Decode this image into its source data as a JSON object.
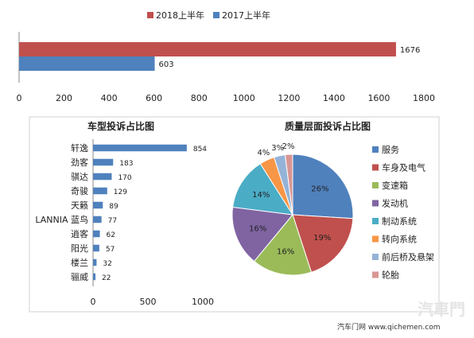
{
  "chart_data": [
    {
      "type": "bar",
      "orientation": "horizontal",
      "series": [
        {
          "name": "2018上半年",
          "values": [
            1676
          ],
          "color": "#c0504d"
        },
        {
          "name": "2017上半年",
          "values": [
            603
          ],
          "color": "#4f81bd"
        }
      ],
      "x_ticks": [
        "0",
        "200",
        "400",
        "600",
        "800",
        "1000",
        "1200",
        "1400",
        "1600",
        "1800"
      ],
      "xlim": [
        0,
        1800
      ],
      "legend_position": "top"
    },
    {
      "type": "bar",
      "orientation": "horizontal",
      "title": "车型投诉占比图",
      "categories": [
        "轩逸",
        "劲客",
        "骐达",
        "奇骏",
        "天籁",
        "LANNIA 蓝鸟",
        "逍客",
        "阳光",
        "楼兰",
        "骊威"
      ],
      "values": [
        854,
        183,
        170,
        129,
        89,
        77,
        62,
        57,
        32,
        22
      ],
      "value_labels": [
        "854",
        "183",
        "170",
        "129",
        "89",
        "77",
        "62",
        "57",
        "32",
        "22"
      ],
      "x_ticks": [
        "0",
        "500",
        "1000"
      ],
      "xlim": [
        0,
        1000
      ],
      "color": "#4f81bd"
    },
    {
      "type": "pie",
      "title": "质量层面投诉占比图",
      "slices": [
        {
          "label": "服务",
          "value": 26,
          "display": "26%",
          "color": "#4f81bd"
        },
        {
          "label": "车身及电气",
          "value": 19,
          "display": "19%",
          "color": "#c0504d"
        },
        {
          "label": "变速箱",
          "value": 16,
          "display": "16%",
          "color": "#9bbb59"
        },
        {
          "label": "发动机",
          "value": 16,
          "display": "16%",
          "color": "#8064a2"
        },
        {
          "label": "制动系统",
          "value": 14,
          "display": "14%",
          "color": "#4bacc6"
        },
        {
          "label": "转向系统",
          "value": 4,
          "display": "4%",
          "color": "#f79646"
        },
        {
          "label": "前后桥及悬架",
          "value": 3,
          "display": "3%",
          "color": "#95b3d7"
        },
        {
          "label": "轮胎",
          "value": 2,
          "display": "2%",
          "color": "#d99694"
        }
      ],
      "legend_position": "right"
    }
  ],
  "footer": {
    "source": "汽车门网 www.qichemen.com",
    "watermark": "汽車門"
  }
}
